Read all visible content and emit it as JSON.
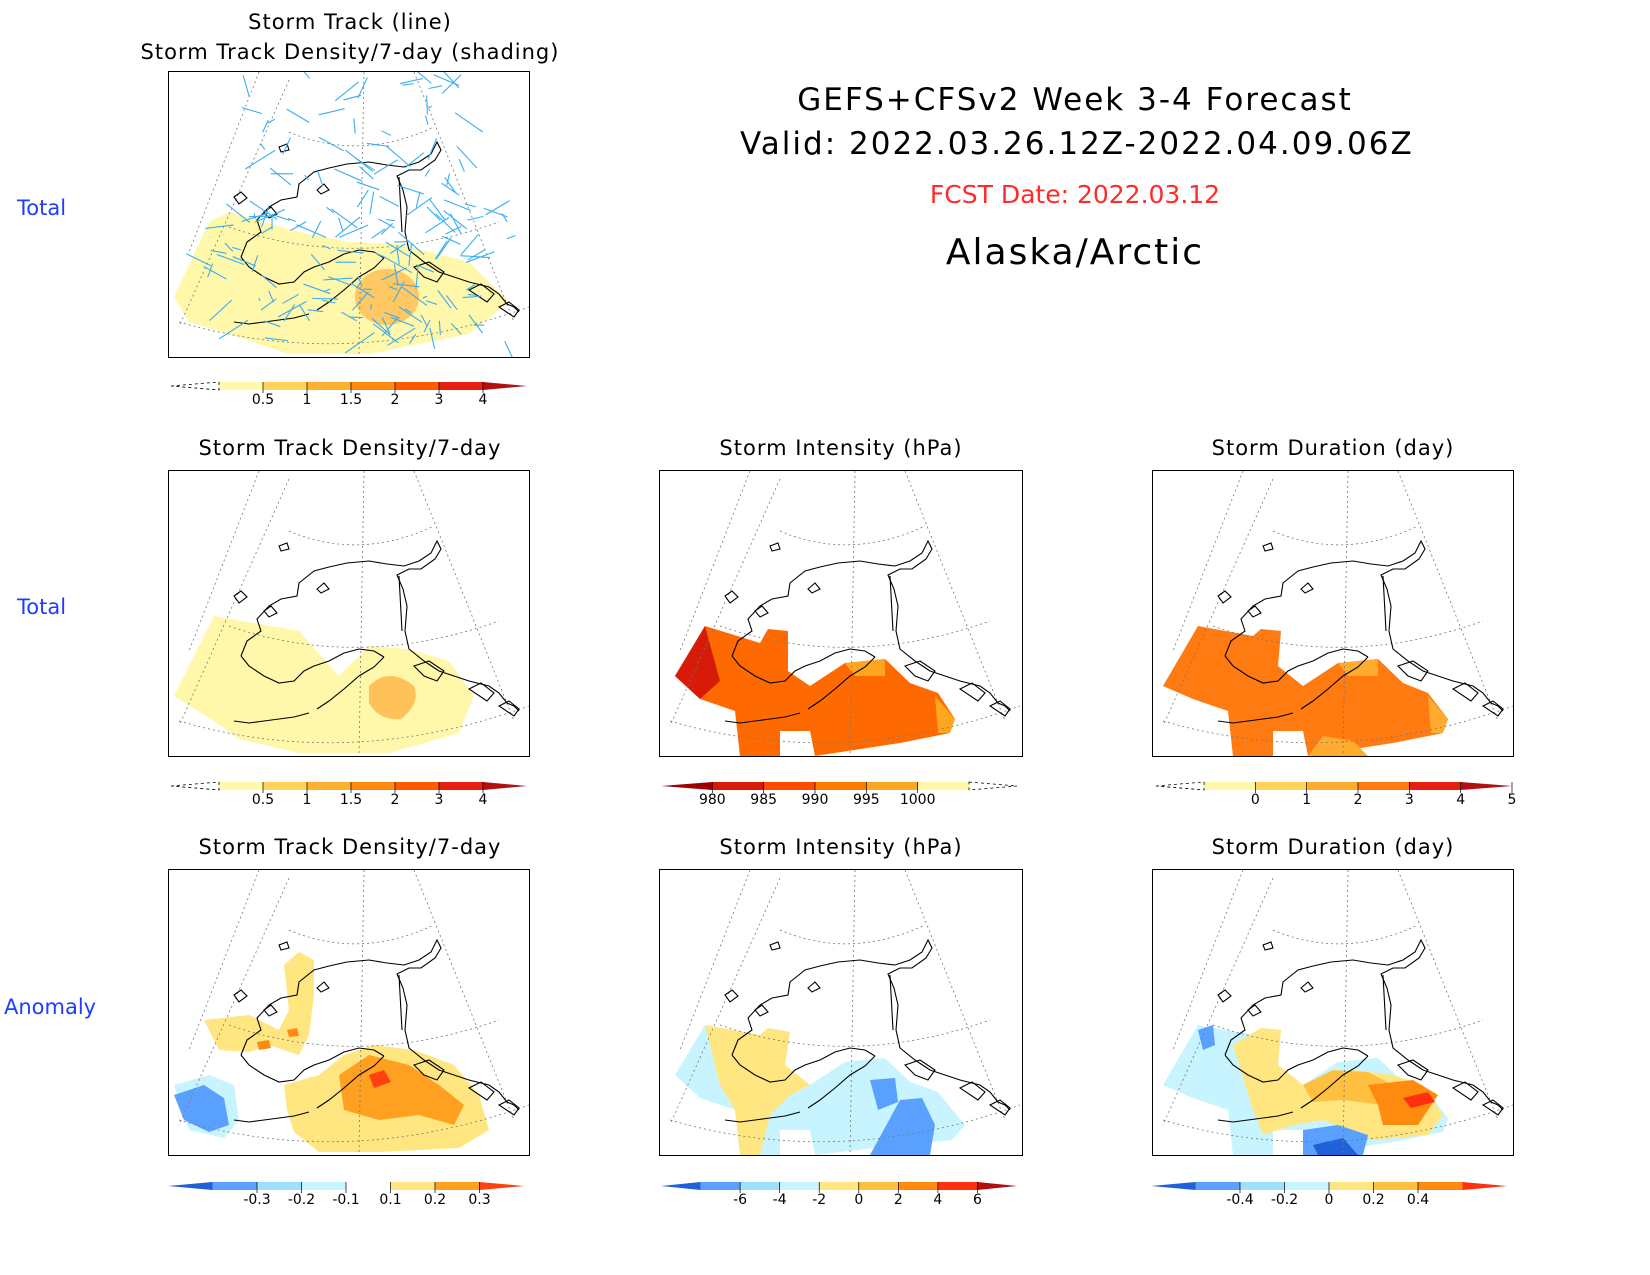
{
  "header": {
    "line1": "GEFS+CFSv2 Week 3-4 Forecast",
    "line2": "Valid: 2022.03.26.12Z-2022.04.09.06Z",
    "fcst": "FCST Date: 2022.03.12",
    "region": "Alaska/Arctic",
    "fcst_color": "#ff2a2a"
  },
  "row_labels": {
    "row1": "Total",
    "row2": "Total",
    "row3": "Anomaly"
  },
  "panels": {
    "track_title_1": "Storm Track (line)",
    "track_title_2": "Storm Track Density/7-day (shading)",
    "density_total": "Storm Track Density/7-day",
    "intensity_total": "Storm Intensity (hPa)",
    "duration_total": "Storm Duration (day)",
    "density_anom": "Storm Track Density/7-day",
    "intensity_anom": "Storm Intensity (hPa)",
    "duration_anom": "Storm Duration (day)"
  },
  "colorbars": {
    "density": {
      "labels": [
        "0.5",
        "1",
        "1.5",
        "2",
        "3",
        "4"
      ],
      "colors": [
        "#fff7aa",
        "#ffd35a",
        "#ffb02e",
        "#ff8a10",
        "#ff5a00",
        "#e42010",
        "#b01010"
      ]
    },
    "intensity": {
      "labels": [
        "980",
        "985",
        "990",
        "995",
        "1000"
      ],
      "colors": [
        "#a00000",
        "#d81a08",
        "#ff4a00",
        "#ff7a00",
        "#ffa620",
        "#fff7aa"
      ]
    },
    "duration": {
      "labels": [
        "0",
        "1",
        "2",
        "3",
        "4",
        "5"
      ],
      "colors": [
        "#fff7aa",
        "#ffd35a",
        "#ffab2e",
        "#ff7a10",
        "#e42010",
        "#b01010"
      ]
    },
    "density_anom": {
      "labels": [
        "-0.3",
        "-0.2",
        "-0.1",
        "0.1",
        "0.2",
        "0.3"
      ],
      "colors": [
        "#2060d8",
        "#5aa0ff",
        "#a0e0ff",
        "#c8f4ff",
        "#ffffff",
        "#ffe680",
        "#ffa020",
        "#ff4010"
      ]
    },
    "intensity_anom": {
      "labels": [
        "-6",
        "-4",
        "-2",
        "0",
        "2",
        "4",
        "6"
      ],
      "colors": [
        "#2060d8",
        "#5aa0ff",
        "#a0e0ff",
        "#c8f4ff",
        "#ffe680",
        "#ffc040",
        "#ff8a10",
        "#ff3010",
        "#b01010"
      ]
    },
    "duration_anom": {
      "labels": [
        "-0.4",
        "-0.2",
        "0",
        "0.2",
        "0.4"
      ],
      "colors": [
        "#2060d8",
        "#5aa0ff",
        "#a0e0ff",
        "#c8f4ff",
        "#ffe680",
        "#ffc040",
        "#ff8a10",
        "#ff3010"
      ]
    }
  },
  "chart_data": [
    {
      "type": "heatmap",
      "title": "Storm Track (line) / Storm Track Density/7-day (shading)",
      "region": "Alaska/Arctic",
      "peak_value_approx": 1.5
    },
    {
      "type": "heatmap",
      "title": "Storm Track Density/7-day",
      "colorbar": [
        0.5,
        1,
        1.5,
        2,
        3,
        4
      ],
      "peak_value_approx": 1.5
    },
    {
      "type": "heatmap",
      "title": "Storm Intensity (hPa)",
      "colorbar": [
        980,
        985,
        990,
        995,
        1000
      ],
      "range_approx": [
        983,
        992
      ]
    },
    {
      "type": "heatmap",
      "title": "Storm Duration (day)",
      "colorbar": [
        0,
        1,
        2,
        3,
        4,
        5
      ],
      "range_approx": [
        2,
        3.5
      ]
    },
    {
      "type": "heatmap",
      "title": "Storm Track Density/7-day",
      "colorbar": [
        -0.3,
        -0.2,
        -0.1,
        0.1,
        0.2,
        0.3
      ],
      "range_approx": [
        -0.3,
        0.3
      ]
    },
    {
      "type": "heatmap",
      "title": "Storm Intensity (hPa)",
      "colorbar": [
        -6,
        -4,
        -2,
        0,
        2,
        4,
        6
      ],
      "range_approx": [
        -4,
        2
      ]
    },
    {
      "type": "heatmap",
      "title": "Storm Duration (day)",
      "colorbar": [
        -0.4,
        -0.2,
        0,
        0.2,
        0.4
      ],
      "range_approx": [
        -0.4,
        0.4
      ]
    }
  ]
}
